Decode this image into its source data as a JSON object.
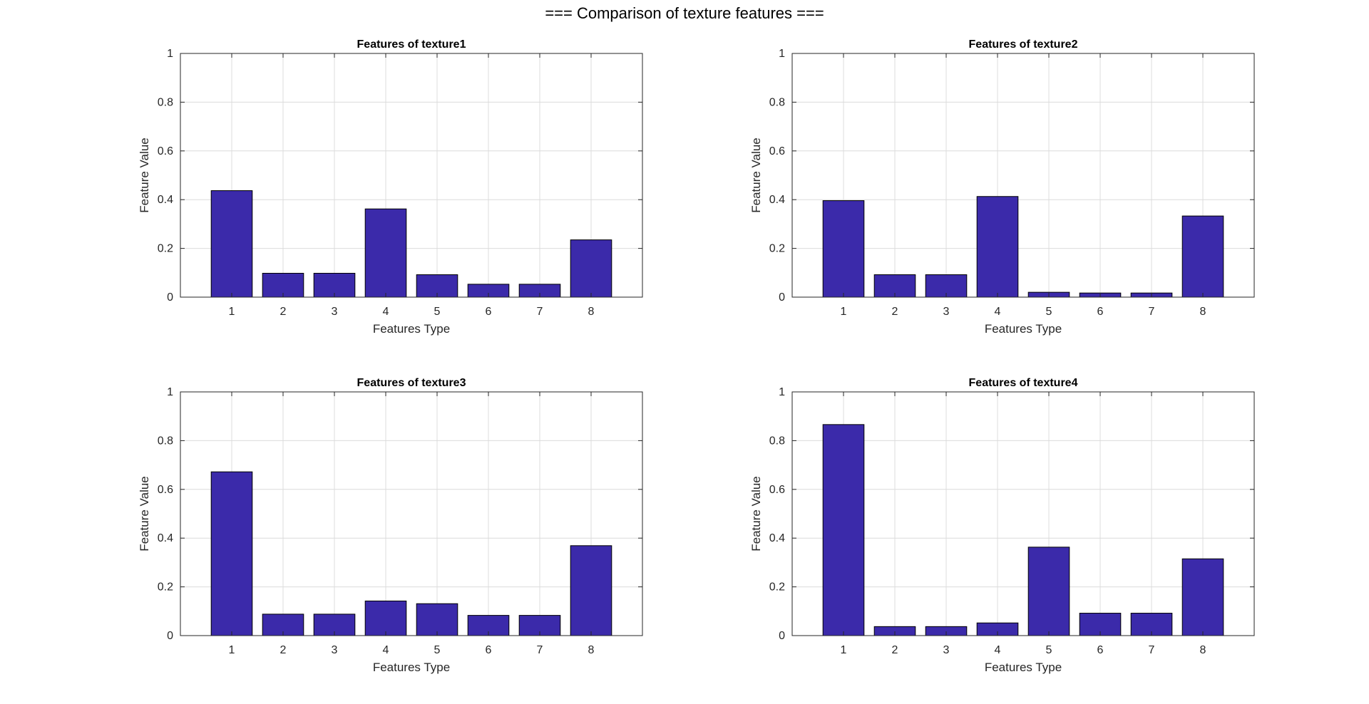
{
  "figure_title": "=== Comparison of texture features ===",
  "colors": {
    "bar_fill": "#3B2AAA",
    "bar_edge": "#000000",
    "grid": "#DCDCDC",
    "axis": "#262626",
    "text": "#262626"
  },
  "chart_data": [
    {
      "type": "bar",
      "title": "Features of texture1",
      "xlabel": "Features Type",
      "ylabel": "Feature Value",
      "categories": [
        "1",
        "2",
        "3",
        "4",
        "5",
        "6",
        "7",
        "8"
      ],
      "values": [
        0.437,
        0.098,
        0.098,
        0.362,
        0.092,
        0.053,
        0.053,
        0.235
      ],
      "ylim": [
        0,
        1
      ],
      "yticks": [
        "0",
        "0.2",
        "0.4",
        "0.6",
        "0.8",
        "1"
      ],
      "grid": true
    },
    {
      "type": "bar",
      "title": "Features of texture2",
      "xlabel": "Features Type",
      "ylabel": "Feature Value",
      "categories": [
        "1",
        "2",
        "3",
        "4",
        "5",
        "6",
        "7",
        "8"
      ],
      "values": [
        0.396,
        0.092,
        0.092,
        0.413,
        0.02,
        0.017,
        0.017,
        0.333
      ],
      "ylim": [
        0,
        1
      ],
      "yticks": [
        "0",
        "0.2",
        "0.4",
        "0.6",
        "0.8",
        "1"
      ],
      "grid": true
    },
    {
      "type": "bar",
      "title": "Features of texture3",
      "xlabel": "Features Type",
      "ylabel": "Feature Value",
      "categories": [
        "1",
        "2",
        "3",
        "4",
        "5",
        "6",
        "7",
        "8"
      ],
      "values": [
        0.672,
        0.088,
        0.088,
        0.142,
        0.131,
        0.083,
        0.083,
        0.369
      ],
      "ylim": [
        0,
        1
      ],
      "yticks": [
        "0",
        "0.2",
        "0.4",
        "0.6",
        "0.8",
        "1"
      ],
      "grid": true
    },
    {
      "type": "bar",
      "title": "Features of texture4",
      "xlabel": "Features Type",
      "ylabel": "Feature Value",
      "categories": [
        "1",
        "2",
        "3",
        "4",
        "5",
        "6",
        "7",
        "8"
      ],
      "values": [
        0.866,
        0.037,
        0.037,
        0.052,
        0.363,
        0.092,
        0.092,
        0.315
      ],
      "ylim": [
        0,
        1
      ],
      "yticks": [
        "0",
        "0.2",
        "0.4",
        "0.6",
        "0.8",
        "1"
      ],
      "grid": true
    }
  ]
}
